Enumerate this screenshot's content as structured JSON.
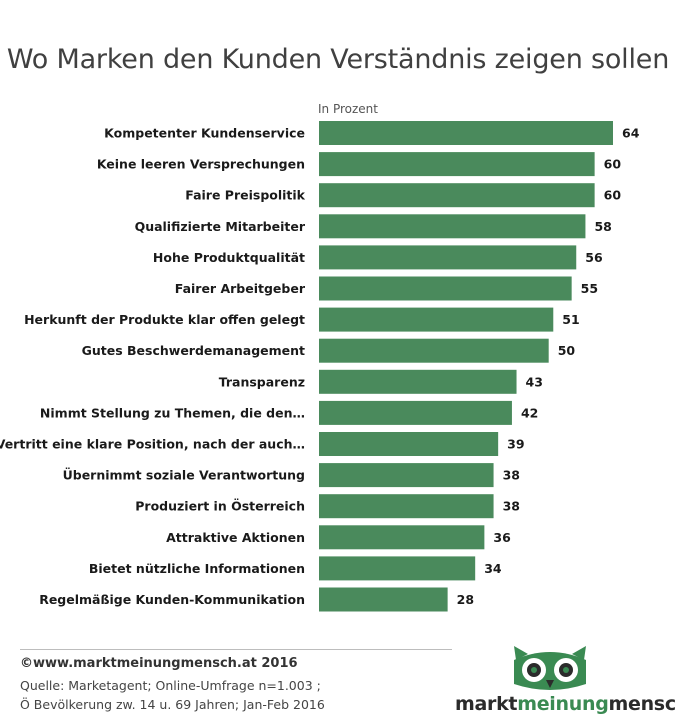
{
  "title": "Wo Marken den Kunden Verständnis zeigen sollen",
  "chart_data": {
    "type": "bar",
    "orientation": "horizontal",
    "unit_label": "In Prozent",
    "categories": [
      "Kompetenter Kundenservice",
      "Keine leeren Versprechungen",
      "Faire Preispolitik",
      "Qualifizierte Mitarbeiter",
      "Hohe Produktqualität",
      "Fairer Arbeitgeber",
      "Herkunft der Produkte klar offen gelegt",
      "Gutes Beschwerdemanagement",
      "Transparenz",
      "Nimmt Stellung zu Themen, die den…",
      "Vertritt eine klare Position, nach der auch…",
      "Übernimmt soziale Verantwortung",
      "Produziert in Österreich",
      "Attraktive Aktionen",
      "Bietet nützliche Informationen",
      "Regelmäßige Kunden-Kommunikation"
    ],
    "values": [
      64,
      60,
      60,
      58,
      56,
      55,
      51,
      50,
      43,
      42,
      39,
      38,
      38,
      36,
      34,
      28
    ],
    "bar_color": "#4a8a5c",
    "xlim": [
      0,
      64
    ]
  },
  "footer": {
    "copyright": "©www.marktmeinungmensch.at 2016",
    "source_line1": "Quelle: Marketagent;  Online-Umfrage n=1.003 ;",
    "source_line2": "Ö Bevölkerung zw. 14 u. 69 Jahren; Jan-Feb 2016"
  },
  "logo": {
    "part1": "markt",
    "part2": "meinung",
    "part3": "mensch",
    "accent_color": "#3a8a52"
  }
}
